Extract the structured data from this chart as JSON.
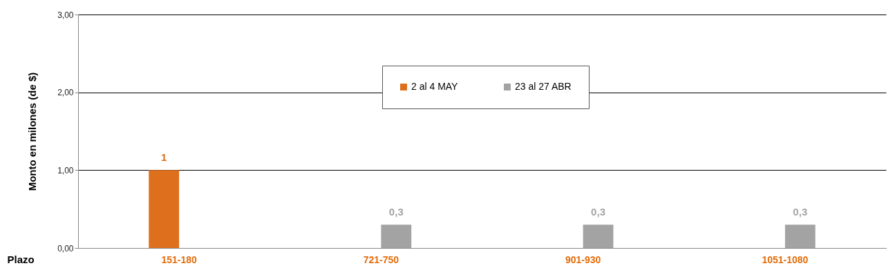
{
  "chart_data": {
    "type": "bar",
    "ylabel": "Monto en  milones (de $)",
    "xlabel": "Plazo",
    "categories": [
      "151-180",
      "721-750",
      "901-930",
      "1051-1080"
    ],
    "series": [
      {
        "name": "2  al 4 MAY",
        "color": "#de6f1c",
        "values": [
          1,
          null,
          null,
          null
        ],
        "value_labels": [
          "1",
          null,
          null,
          null
        ]
      },
      {
        "name": "23 al 27 ABR",
        "color": "#a3a3a3",
        "values": [
          null,
          0.3,
          0.3,
          0.3
        ],
        "value_labels": [
          null,
          "0,3",
          "0,3",
          "0,3"
        ]
      }
    ],
    "ylim": [
      0,
      3
    ],
    "yticks": [
      {
        "value": 0,
        "label": "0,00"
      },
      {
        "value": 1,
        "label": "1,00"
      },
      {
        "value": 2,
        "label": "2,00"
      },
      {
        "value": 3,
        "label": "3,00"
      }
    ],
    "grid": "y",
    "legend": "top"
  }
}
